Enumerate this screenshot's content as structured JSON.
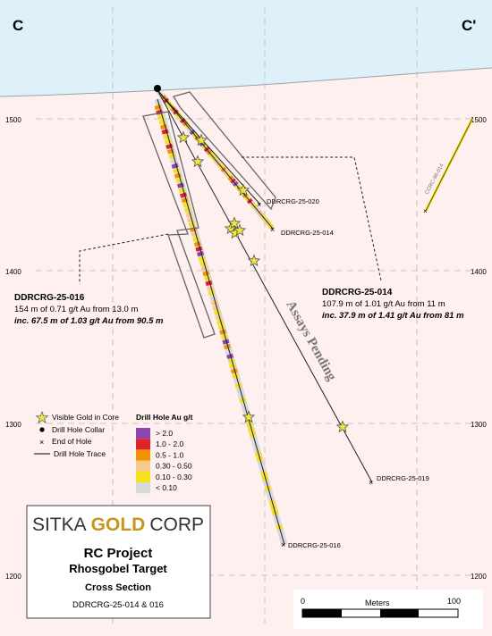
{
  "section_ends": {
    "left": "C",
    "right": "C'"
  },
  "elevation_labels": [
    "1500",
    "1400",
    "1300",
    "1200"
  ],
  "holes": {
    "h016": {
      "label": "DDRCRG-25-016"
    },
    "h014": {
      "label": "DDRCRG-25-014"
    },
    "h020": {
      "label": "DDRCRG-25-020"
    },
    "h019": {
      "label": "DDRCRG-25-019"
    },
    "cc014": {
      "label": "CCRC-98-014"
    }
  },
  "assays_pending": "Assays Pending",
  "callouts": {
    "c016": {
      "title": "DDRCRG-25-016",
      "line1": "154 m of 0.71 g/t Au from 13.0 m",
      "line2": "inc. 67.5 m of 1.03 g/t Au from 90.5 m"
    },
    "c014": {
      "title": "DDRCRG-25-014",
      "line1": "107.9 m of 1.01 g/t Au from 11 m",
      "line2": "inc. 37.9 m of 1.41 g/t Au from 81 m"
    }
  },
  "legend": {
    "visible_gold": "Visible Gold in Core",
    "collar": "Drill Hole Collar",
    "end_of_hole": "End of Hole",
    "trace": "Drill Hole Trace",
    "grade_title": "Drill Hole Au g/t",
    "grades": [
      {
        "label": "> 2.0",
        "color": "#8e44ad"
      },
      {
        "label": "1.0 - 2.0",
        "color": "#e0202a"
      },
      {
        "label": "0.5 - 1.0",
        "color": "#f39200"
      },
      {
        "label": "0.30 - 0.50",
        "color": "#f9c98a"
      },
      {
        "label": "0.10 - 0.30",
        "color": "#f6e21a"
      },
      {
        "label": "< 0.10",
        "color": "#d9d9d9"
      }
    ]
  },
  "title_block": {
    "company_a": "SITKA",
    "company_b": "GOLD",
    "company_c": "CORP",
    "project": "RC Project",
    "target": "Rhosgobel Target",
    "section": "Cross Section",
    "holes": "DDRCRG-25-014 & 016"
  },
  "scale": {
    "min": "0",
    "unit": "Meters",
    "max": "100"
  },
  "colors": {
    "sky": "#dff1f8",
    "ground": "#fdf0ef",
    "gold_star": "#f2e63c"
  }
}
